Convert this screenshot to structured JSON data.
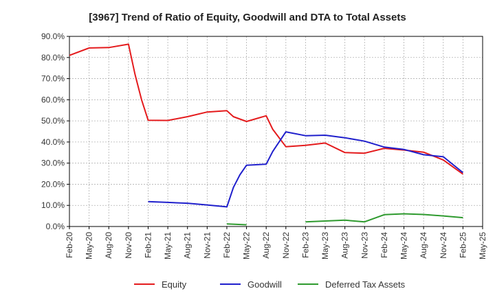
{
  "chart_data": {
    "type": "line",
    "title": "[3967]  Trend of Ratio of Equity, Goodwill and DTA to Total Assets",
    "xlabel": "",
    "ylabel": "",
    "x_ticks": [
      "Feb-20",
      "May-20",
      "Aug-20",
      "Nov-20",
      "Feb-21",
      "May-21",
      "Aug-21",
      "Nov-21",
      "Feb-22",
      "May-22",
      "Aug-22",
      "Nov-22",
      "Feb-23",
      "May-23",
      "Aug-23",
      "Nov-23",
      "Feb-24",
      "May-24",
      "Aug-24",
      "Nov-24",
      "Feb-25",
      "May-25"
    ],
    "y_ticks": [
      "0.0%",
      "10.0%",
      "20.0%",
      "30.0%",
      "40.0%",
      "50.0%",
      "60.0%",
      "70.0%",
      "80.0%",
      "90.0%"
    ],
    "ylim": [
      0,
      90
    ],
    "grid": true,
    "legend_position": "bottom",
    "series": [
      {
        "name": "Equity",
        "color": "#e41a1c",
        "points": [
          [
            "Feb-20",
            81.0
          ],
          [
            "May-20",
            84.5
          ],
          [
            "Aug-20",
            84.7
          ],
          [
            "Nov-20",
            86.3
          ],
          [
            "Dec-20",
            72.0
          ],
          [
            "Jan-21",
            60.0
          ],
          [
            "Feb-21",
            50.3
          ],
          [
            "May-21",
            50.2
          ],
          [
            "Aug-21",
            52.0
          ],
          [
            "Nov-21",
            54.2
          ],
          [
            "Feb-22",
            54.8
          ],
          [
            "Mar-22",
            52.0
          ],
          [
            "May-22",
            49.7
          ],
          [
            "Aug-22",
            52.4
          ],
          [
            "Sep-22",
            46.0
          ],
          [
            "Nov-22",
            37.8
          ],
          [
            "Feb-23",
            38.4
          ],
          [
            "May-23",
            39.5
          ],
          [
            "Aug-23",
            35.0
          ],
          [
            "Nov-23",
            34.7
          ],
          [
            "Feb-24",
            37.0
          ],
          [
            "May-24",
            36.2
          ],
          [
            "Aug-24",
            35.2
          ],
          [
            "Nov-24",
            31.5
          ],
          [
            "Feb-25",
            24.8
          ]
        ]
      },
      {
        "name": "Goodwill",
        "color": "#1f1fcc",
        "points": [
          [
            "Feb-21",
            11.8
          ],
          [
            "May-21",
            11.4
          ],
          [
            "Aug-21",
            11.0
          ],
          [
            "Nov-21",
            10.2
          ],
          [
            "Feb-22",
            9.3
          ],
          [
            "Mar-22",
            18.5
          ],
          [
            "Apr-22",
            24.5
          ],
          [
            "May-22",
            29.0
          ],
          [
            "Aug-22",
            29.5
          ],
          [
            "Sep-22",
            35.5
          ],
          [
            "Nov-22",
            44.8
          ],
          [
            "Feb-23",
            43.0
          ],
          [
            "May-23",
            43.2
          ],
          [
            "Aug-23",
            42.0
          ],
          [
            "Nov-23",
            40.4
          ],
          [
            "Feb-24",
            37.6
          ],
          [
            "May-24",
            36.5
          ],
          [
            "Aug-24",
            34.0
          ],
          [
            "Nov-24",
            33.0
          ],
          [
            "Feb-25",
            25.5
          ]
        ]
      },
      {
        "name": "Deferred Tax Assets",
        "color": "#2e9a2e",
        "segments": [
          [
            [
              "Feb-22",
              1.2
            ],
            [
              "May-22",
              0.8
            ]
          ],
          [
            [
              "Feb-23",
              2.2
            ],
            [
              "May-23",
              2.6
            ],
            [
              "Aug-23",
              3.0
            ],
            [
              "Nov-23",
              2.2
            ],
            [
              "Feb-24",
              5.6
            ],
            [
              "May-24",
              6.0
            ],
            [
              "Aug-24",
              5.7
            ],
            [
              "Nov-24",
              5.0
            ],
            [
              "Feb-25",
              4.2
            ]
          ]
        ]
      }
    ]
  }
}
